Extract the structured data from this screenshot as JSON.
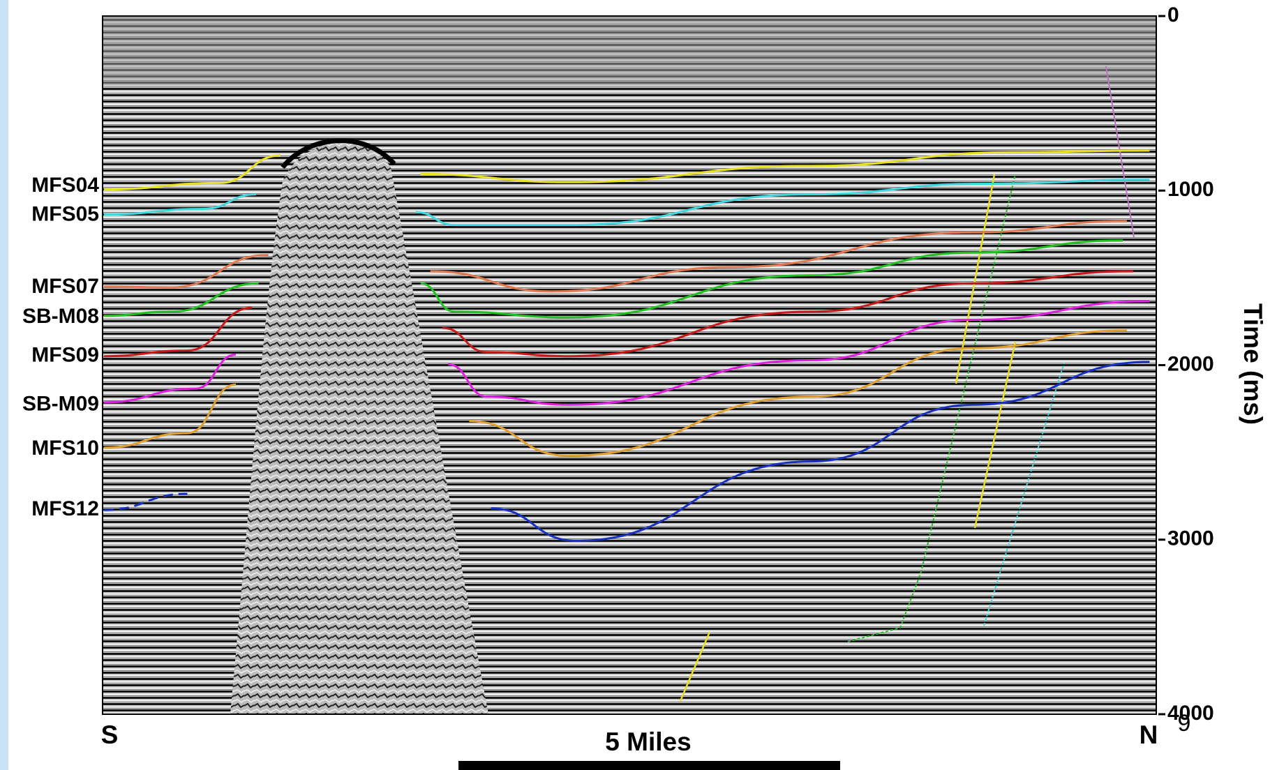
{
  "figure": {
    "time_axis": {
      "label": "Time (ms)",
      "range": [
        0,
        4000
      ],
      "ticks": [
        0,
        1000,
        2000,
        3000,
        4000
      ]
    },
    "horizons": [
      {
        "label": "MFS04",
        "color": "#e8e020"
      },
      {
        "label": "MFS05",
        "color": "#40d8e0"
      },
      {
        "label": "MFS07",
        "color": "#e07850"
      },
      {
        "label": "SB-M08",
        "color": "#20c020"
      },
      {
        "label": "MFS09",
        "color": "#c81818"
      },
      {
        "label": "SB-M09",
        "color": "#e020e0"
      },
      {
        "label": "MFS10",
        "color": "#e0a030"
      },
      {
        "label": "MFS12",
        "color": "#1830c0"
      }
    ],
    "direction": {
      "left": "S",
      "right": "N"
    },
    "scale_bar": {
      "label": "5 Miles"
    },
    "page_number": "9"
  }
}
